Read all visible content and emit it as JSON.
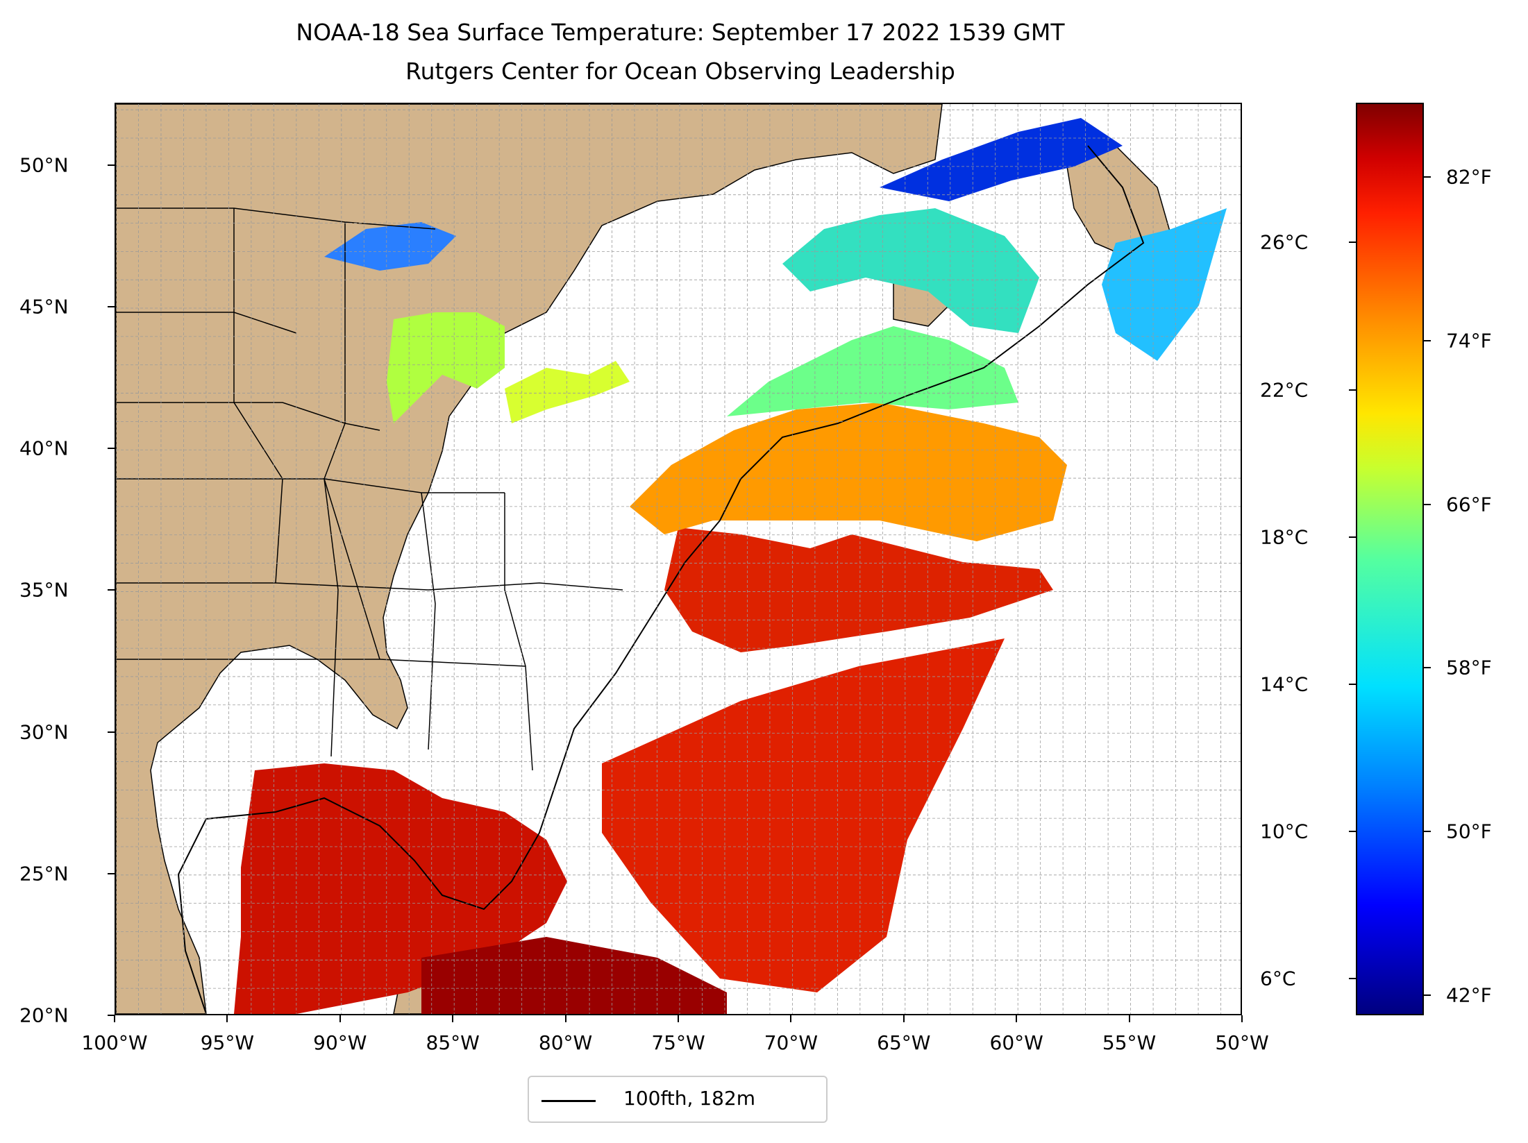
{
  "title": {
    "line1": "NOAA-18 Sea Surface Temperature: September 17 2022 1539 GMT",
    "line2": "Rutgers Center for Ocean Observing Leadership"
  },
  "map": {
    "lon_range": [
      -100,
      -50
    ],
    "lat_range": [
      20,
      52.2
    ],
    "land_color": "#d2b48c",
    "lake_color": "#9ab8e0",
    "x_ticks": [
      "100°W",
      "95°W",
      "90°W",
      "85°W",
      "80°W",
      "75°W",
      "70°W",
      "65°W",
      "60°W",
      "55°W",
      "50°W"
    ],
    "y_ticks": [
      "20°N",
      "25°N",
      "30°N",
      "35°N",
      "40°N",
      "45°N",
      "50°N"
    ],
    "gridlines": true
  },
  "colorbar": {
    "colormap": "jet",
    "celsius_labels": [
      "6°C",
      "10°C",
      "14°C",
      "18°C",
      "22°C",
      "26°C"
    ],
    "fahrenheit_labels": [
      "42°F",
      "50°F",
      "58°F",
      "66°F",
      "74°F",
      "82°F"
    ]
  },
  "legend": {
    "label": "100fth, 182m",
    "line_color": "#000000"
  }
}
